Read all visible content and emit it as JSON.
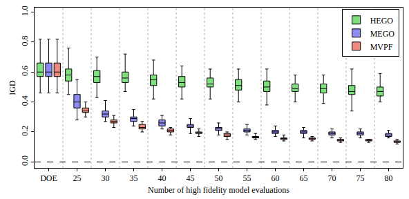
{
  "chart_data": {
    "type": "box",
    "x_label": "Number of high fidelity model evaluations",
    "y_label": "IGD",
    "categories": [
      "DOE",
      "25",
      "30",
      "35",
      "40",
      "45",
      "50",
      "55",
      "60",
      "65",
      "70",
      "75",
      "80"
    ],
    "ylim": [
      -0.04,
      1.03
    ],
    "yticks": [
      {
        "value": 0,
        "label": "0.0"
      },
      {
        "value": 0.2,
        "label": "0.2"
      },
      {
        "value": 0.4,
        "label": "0.4"
      },
      {
        "value": 0.6,
        "label": "0.6"
      },
      {
        "value": 0.8,
        "label": "0.8"
      },
      {
        "value": 1,
        "label": "1.0"
      }
    ],
    "hline": 0,
    "grid": true,
    "legend": "top right",
    "series": [
      {
        "name": "HEGO",
        "color": "#80e080",
        "min": [
          0.46,
          0.45,
          0.43,
          0.47,
          0.42,
          0.42,
          0.42,
          0.4,
          0.38,
          0.4,
          0.39,
          0.34,
          0.4
        ],
        "q1": [
          0.57,
          0.54,
          0.53,
          0.53,
          0.51,
          0.5,
          0.5,
          0.48,
          0.47,
          0.47,
          0.46,
          0.45,
          0.44
        ],
        "median": [
          0.6,
          0.58,
          0.57,
          0.56,
          0.55,
          0.53,
          0.52,
          0.51,
          0.5,
          0.49,
          0.49,
          0.47,
          0.47
        ],
        "q3": [
          0.66,
          0.62,
          0.61,
          0.6,
          0.58,
          0.57,
          0.56,
          0.55,
          0.54,
          0.52,
          0.52,
          0.51,
          0.5
        ],
        "max": [
          0.82,
          0.76,
          0.7,
          0.72,
          0.68,
          0.64,
          0.62,
          0.62,
          0.62,
          0.58,
          0.58,
          0.62,
          0.59
        ]
      },
      {
        "name": "MEGO",
        "color": "#8c8cf0",
        "min": [
          0.46,
          0.28,
          0.27,
          0.24,
          0.22,
          0.19,
          0.18,
          0.18,
          0.17,
          0.16,
          0.16,
          0.16,
          0.16
        ],
        "q1": [
          0.57,
          0.36,
          0.3,
          0.27,
          0.24,
          0.23,
          0.21,
          0.2,
          0.19,
          0.19,
          0.18,
          0.18,
          0.17
        ],
        "median": [
          0.6,
          0.4,
          0.32,
          0.29,
          0.26,
          0.24,
          0.22,
          0.21,
          0.2,
          0.2,
          0.19,
          0.19,
          0.18
        ],
        "q3": [
          0.66,
          0.45,
          0.34,
          0.3,
          0.28,
          0.25,
          0.23,
          0.22,
          0.21,
          0.21,
          0.2,
          0.2,
          0.19
        ],
        "max": [
          0.82,
          0.55,
          0.41,
          0.35,
          0.31,
          0.29,
          0.26,
          0.25,
          0.24,
          0.23,
          0.22,
          0.22,
          0.21
        ]
      },
      {
        "name": "MVPF",
        "color": "#f08a80",
        "min": [
          0.46,
          0.3,
          0.23,
          0.2,
          0.18,
          0.17,
          0.15,
          0.15,
          0.14,
          0.14,
          0.13,
          0.13,
          0.12
        ],
        "q1": [
          0.57,
          0.33,
          0.26,
          0.22,
          0.2,
          0.19,
          0.17,
          0.16,
          0.15,
          0.15,
          0.14,
          0.14,
          0.13
        ],
        "median": [
          0.6,
          0.34,
          0.27,
          0.23,
          0.21,
          0.19,
          0.18,
          0.17,
          0.16,
          0.15,
          0.15,
          0.14,
          0.13
        ],
        "q3": [
          0.66,
          0.36,
          0.28,
          0.25,
          0.22,
          0.2,
          0.19,
          0.17,
          0.16,
          0.16,
          0.15,
          0.15,
          0.14
        ],
        "max": [
          0.82,
          0.4,
          0.31,
          0.27,
          0.23,
          0.22,
          0.2,
          0.19,
          0.18,
          0.17,
          0.16,
          0.15,
          0.15
        ]
      }
    ]
  }
}
